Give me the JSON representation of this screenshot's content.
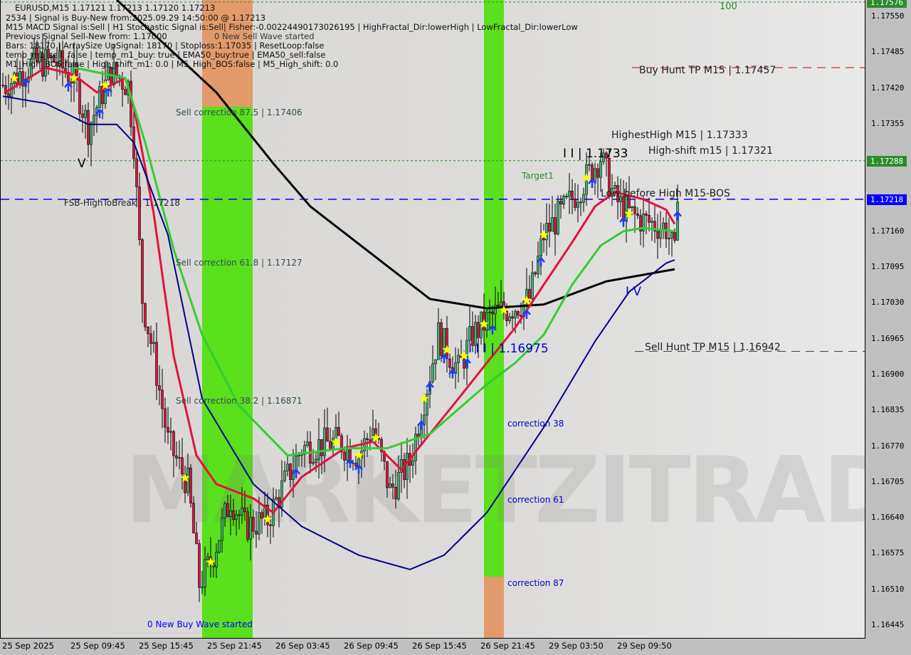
{
  "header": {
    "line1": "EURUSD,M15  1.17121 1.17213 1.17120 1.17213",
    "line2": "2534 | Signal is Buy-New from:2025.09.29 14:50:00 @ 1.17213",
    "line3": "M15 MACD Signal is:Sell | H1 Stochastic Signal is:Sell| Fisher:-0.00224490173026195 | HighFractal_Dir:lowerHigh | LowFractal_Dir:lowerLow",
    "line4": "Previous Signal Sell-New from: 1.17000",
    "line5": "Bars: 18170 | ArraySize UpSignal: 18170 | Stoploss:1.17035 | ResetLoop:false",
    "line6": "temp_m1_sell: false | temp_m1_buy: true | EMA50_buy:true | EMA50_sell:false",
    "line7": "M1_High_BOS:false | High_shift_m1: 0.0 | M5_High_BOS:false | M5_High_shift: 0.0",
    "overlay": "0 New Sell Wave started"
  },
  "watermark": "MARKETZITRADE",
  "annotations": {
    "sell_corr_875": "Sell correction 87.5 | 1.17406",
    "sell_corr_618": "Sell correction 61.8 | 1.17127",
    "sell_corr_382": "Sell correction 38.2 | 1.16871",
    "fsb": "FSB-HighToBreak | 1.17218",
    "new_buy_wave": "0 New Buy Wave started",
    "hundred": "100",
    "target1": "Target1",
    "buy_hunt": "Buy Hunt TP M15 | 1.17457",
    "highest_high": "HighestHigh   M15 | 1.17333",
    "high_shift": "High-shift m15 | 1.17321",
    "high_label": "I I | 1.1733",
    "low_before_high": "Low before High   M15-BOS",
    "low_label": "I I I | 1.16975",
    "sell_hunt": "Sell Hunt TP M15 | 1.16942",
    "corr38": "correction 38",
    "corr61": "correction 61",
    "corr87": "correction 87",
    "wave_v": "V",
    "wave_iv": "I V"
  },
  "chart_data": {
    "type": "candlestick",
    "symbol": "EURUSD",
    "timeframe": "M15",
    "ylim": [
      1.1641,
      1.1758
    ],
    "y_ticks": [
      "1.17550",
      "1.17485",
      "1.17420",
      "1.17355",
      "1.17160",
      "1.17095",
      "1.17030",
      "1.16965",
      "1.16900",
      "1.16835",
      "1.16770",
      "1.16705",
      "1.16640",
      "1.16575",
      "1.16510",
      "1.16445"
    ],
    "price_tags": [
      {
        "value": "1.17576",
        "color": "#2e8b2e"
      },
      {
        "value": "1.17288",
        "color": "#2e8b2e"
      },
      {
        "value": "1.17218",
        "color": "#0000ff"
      }
    ],
    "x_ticks": [
      "25 Sep 2025",
      "25 Sep 09:45",
      "25 Sep 15:45",
      "25 Sep 21:45",
      "26 Sep 03:45",
      "26 Sep 09:45",
      "26 Sep 15:45",
      "26 Sep 21:45",
      "29 Sep 03:50",
      "29 Sep 09:50"
    ],
    "close_path": {
      "bar": [
        1,
        10,
        18,
        25,
        30,
        38,
        44,
        46,
        49,
        53,
        58,
        65,
        69,
        73,
        80,
        85,
        93,
        100,
        105,
        118,
        125,
        130,
        136,
        143,
        148,
        153,
        160,
        165,
        173,
        180,
        185,
        190,
        198,
        205,
        210,
        215,
        220,
        225,
        233,
        236,
        237
      ],
      "price": [
        1.17425,
        1.17463,
        1.1747,
        1.17438,
        1.17347,
        1.17451,
        1.17425,
        1.17321,
        1.17037,
        1.16934,
        1.16778,
        1.16701,
        1.1652,
        1.16559,
        1.16675,
        1.16624,
        1.16637,
        1.16714,
        1.16766,
        1.16778,
        1.16753,
        1.16804,
        1.16688,
        1.1674,
        1.16856,
        1.16972,
        1.16908,
        1.16972,
        1.17011,
        1.17024,
        1.17037,
        1.17153,
        1.17205,
        1.17257,
        1.17295,
        1.17218,
        1.17192,
        1.17179,
        1.17166,
        1.17115,
        1.17213
      ]
    },
    "series": [
      {
        "color": "#000000",
        "bar": [
          40,
          75,
          95,
          108,
          150,
          170,
          190,
          212,
          236
        ],
        "price": [
          1.1758,
          1.17412,
          1.17283,
          1.17205,
          1.17037,
          1.1702,
          1.17027,
          1.17069,
          1.17091
        ]
      },
      {
        "color": "#e0143c",
        "bar": [
          1,
          15,
          25,
          33,
          43,
          46,
          53,
          60,
          68,
          75,
          88,
          95,
          105,
          120,
          130,
          140,
          150,
          160,
          170,
          180,
          190,
          200,
          208,
          215,
          225,
          233,
          236
        ],
        "price": [
          1.17412,
          1.17457,
          1.17444,
          1.17412,
          1.17438,
          1.17386,
          1.17192,
          1.16934,
          1.16753,
          1.16701,
          1.16675,
          1.16649,
          1.16714,
          1.16766,
          1.16778,
          1.16727,
          1.16792,
          1.16856,
          1.16921,
          1.16985,
          1.17063,
          1.1714,
          1.17205,
          1.17231,
          1.17218,
          1.17199,
          1.17173
        ]
      },
      {
        "color": "#32cd32",
        "bar": [
          25,
          43,
          50,
          60,
          70,
          83,
          100,
          120,
          135,
          150,
          160,
          170,
          180,
          190,
          200,
          210,
          218,
          225,
          236
        ],
        "price": [
          1.17457,
          1.17438,
          1.17321,
          1.17127,
          1.16972,
          1.16843,
          1.16753,
          1.16766,
          1.16766,
          1.16792,
          1.16837,
          1.16882,
          1.16921,
          1.16972,
          1.17063,
          1.17134,
          1.1716,
          1.17166,
          1.1716
        ]
      },
      {
        "color": "#00008b",
        "bar": [
          0,
          15,
          30,
          40,
          46,
          58,
          70,
          88,
          105,
          125,
          143,
          155,
          170,
          190,
          208,
          220,
          233,
          236
        ],
        "price": [
          1.17405,
          1.17392,
          1.17354,
          1.17354,
          1.17321,
          1.17153,
          1.16856,
          1.16701,
          1.16624,
          1.16572,
          1.16546,
          1.16572,
          1.16649,
          1.16804,
          1.1696,
          1.1705,
          1.17102,
          1.17108
        ]
      }
    ],
    "levels": [
      {
        "price": 1.17576,
        "color": "#2e8b2e",
        "style": "dotted"
      },
      {
        "price": 1.17288,
        "color": "#2e8b2e",
        "style": "dotted"
      },
      {
        "price": 1.17218,
        "color": "#0000ff",
        "style": "dashed"
      },
      {
        "price": 1.17457,
        "color": "#cc0000",
        "style": "dashed",
        "from_bar": 221
      },
      {
        "price": 1.16942,
        "color": "#444444",
        "style": "dashed",
        "from_bar": 222
      }
    ],
    "buy_arrows_bar": [
      8,
      23,
      34,
      37,
      103,
      122,
      125,
      147,
      150,
      155,
      158,
      163,
      172,
      184,
      189,
      207,
      218,
      237
    ],
    "stars_bar": [
      4,
      25,
      36,
      64,
      73,
      93,
      117,
      125,
      131,
      148,
      156,
      162,
      169,
      176,
      184,
      190,
      205,
      220
    ]
  }
}
